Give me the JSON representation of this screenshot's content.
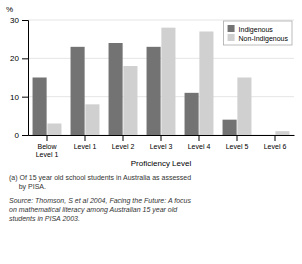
{
  "chart_data": {
    "type": "bar",
    "categories": [
      "Below\nLevel 1",
      "Level 1",
      "Level 2",
      "Level 3",
      "Level 4",
      "Level 5",
      "Level 6"
    ],
    "series": [
      {
        "name": "Indigenous",
        "color": "#737373",
        "values": [
          15,
          23,
          24,
          23,
          11,
          4,
          0
        ]
      },
      {
        "name": "Non-Indigenous",
        "color": "#d0d0d0",
        "values": [
          3,
          8,
          18,
          28,
          27,
          15,
          1
        ]
      }
    ],
    "y_label": "%",
    "x_label": "Proficiency Level",
    "ylim": [
      0,
      30
    ],
    "yticks": [
      0,
      10,
      20,
      30
    ],
    "grid": true,
    "legend": "upper right",
    "annotations": [
      "(a) Of 15 year old school students in Australia as assessed\n     by PISA.",
      "Source: Thomson, S et al 2004, Facing the Future: A focus\non mathematical literacy among Australian 15 year old\nstudents in PISA 2003."
    ]
  }
}
